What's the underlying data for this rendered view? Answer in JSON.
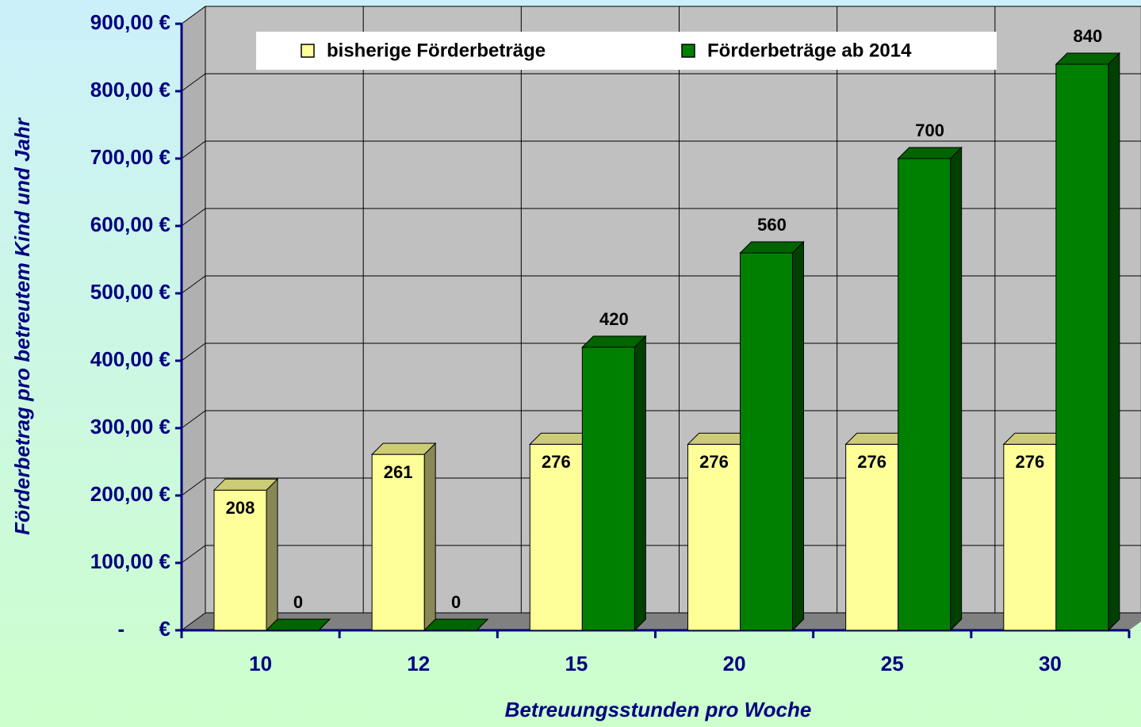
{
  "chart_data": {
    "type": "bar3d",
    "categories": [
      "10",
      "12",
      "15",
      "20",
      "25",
      "30"
    ],
    "series": [
      {
        "name": "bisherige Förderbeträge",
        "color": "#ffff99",
        "values": [
          208,
          261,
          276,
          276,
          276,
          276
        ]
      },
      {
        "name": "Förderbeträge ab 2014",
        "color": "#008000",
        "values": [
          0,
          0,
          420,
          560,
          700,
          840
        ]
      }
    ],
    "ylim": [
      0,
      900
    ],
    "yticks": [
      {
        "value": 0,
        "label": "-      €"
      },
      {
        "value": 100,
        "label": "100,00 €"
      },
      {
        "value": 200,
        "label": "200,00 €"
      },
      {
        "value": 300,
        "label": "300,00 €"
      },
      {
        "value": 400,
        "label": "400,00 €"
      },
      {
        "value": 500,
        "label": "500,00 €"
      },
      {
        "value": 600,
        "label": "600,00 €"
      },
      {
        "value": 700,
        "label": "700,00 €"
      },
      {
        "value": 800,
        "label": "800,00 €"
      },
      {
        "value": 900,
        "label": "900,00 €"
      }
    ],
    "xlabel": "Betreuungsstunden pro Woche",
    "ylabel": "Förderbetrag pro betreutem Kind und Jahr",
    "grid": true
  }
}
